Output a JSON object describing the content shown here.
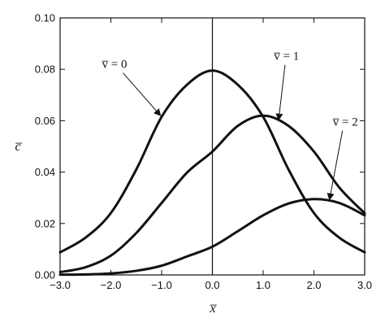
{
  "chart_data": {
    "type": "line",
    "xlabel": "x̅",
    "ylabel": "c̅",
    "xlim": [
      -3.0,
      3.0
    ],
    "ylim": [
      0.0,
      0.1
    ],
    "x_ticks": [
      -3.0,
      -2.0,
      -1.0,
      0.0,
      1.0,
      2.0,
      3.0
    ],
    "x_tick_labels": [
      "−3.0",
      "−2.0",
      "−1.0",
      "0.0",
      "1.0",
      "2.0",
      "3.0"
    ],
    "y_ticks": [
      0.0,
      0.02,
      0.04,
      0.06,
      0.08,
      0.1
    ],
    "y_tick_labels": [
      "0.00",
      "0.02",
      "0.04",
      "0.06",
      "0.08",
      "0.10"
    ],
    "grid": false,
    "vertical_reference_line_x": 0.0,
    "x": [
      -3.0,
      -2.5,
      -2.0,
      -1.5,
      -1.0,
      -0.5,
      0.0,
      0.5,
      1.0,
      1.5,
      2.0,
      2.5,
      3.0
    ],
    "series": [
      {
        "name": "v̅ = 0",
        "values": [
          0.0088,
          0.0145,
          0.0241,
          0.041,
          0.0615,
          0.074,
          0.0795,
          0.074,
          0.0615,
          0.041,
          0.0241,
          0.0145,
          0.0088
        ]
      },
      {
        "name": "v̅ = 1",
        "values": [
          0.0011,
          0.003,
          0.0075,
          0.0163,
          0.028,
          0.0398,
          0.048,
          0.058,
          0.062,
          0.058,
          0.048,
          0.034,
          0.024
        ]
      },
      {
        "name": "v̅ = 2",
        "values": [
          0.0001,
          0.0002,
          0.0006,
          0.0016,
          0.0036,
          0.0072,
          0.011,
          0.017,
          0.0232,
          0.0278,
          0.0295,
          0.028,
          0.0232
        ]
      }
    ],
    "annotations": [
      {
        "text": "v̅ = 0",
        "series": 0,
        "x": -1.0
      },
      {
        "text": "v̅ = 1",
        "series": 1,
        "x": 1.3
      },
      {
        "text": "v̅ = 2",
        "series": 2,
        "x": 2.3
      }
    ]
  }
}
